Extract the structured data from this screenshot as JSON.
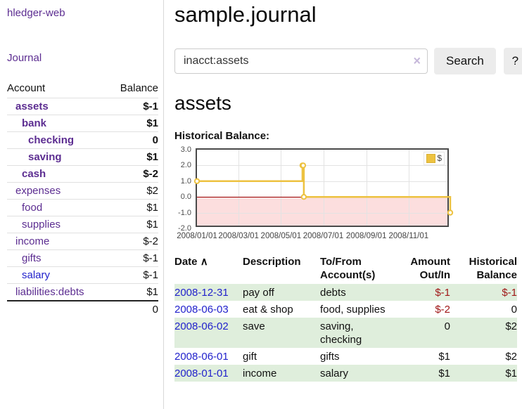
{
  "app": {
    "brand": "hledger-web"
  },
  "sidebar": {
    "journal_link": "Journal",
    "table": {
      "headers": [
        "Account",
        "Balance"
      ],
      "rows": [
        {
          "account": "assets",
          "balance": "$-1",
          "acct_class": "lvl1 bold",
          "bal_class": "neg bold"
        },
        {
          "account": "bank",
          "balance": "$1",
          "acct_class": "lvl2 bold",
          "bal_class": "bold"
        },
        {
          "account": "checking",
          "balance": "0",
          "acct_class": "lvl3 bold",
          "bal_class": "bold"
        },
        {
          "account": "saving",
          "balance": "$1",
          "acct_class": "lvl3 bold",
          "bal_class": "bold"
        },
        {
          "account": "cash",
          "balance": "$-2",
          "acct_class": "lvl2 bold",
          "bal_class": "neg bold"
        },
        {
          "account": "expenses",
          "balance": "$2",
          "acct_class": "lvl1",
          "bal_class": ""
        },
        {
          "account": "food",
          "balance": "$1",
          "acct_class": "lvl2",
          "bal_class": ""
        },
        {
          "account": "supplies",
          "balance": "$1",
          "acct_class": "lvl2",
          "bal_class": ""
        },
        {
          "account": "income",
          "balance": "$-2",
          "acct_class": "lvl1",
          "bal_class": "neg-soft"
        },
        {
          "account": "gifts",
          "balance": "$-1",
          "acct_class": "lvl2",
          "bal_class": "neg-soft"
        },
        {
          "account": "salary",
          "balance": "$-1",
          "acct_class": "lvl2 blue",
          "bal_class": "neg-soft"
        },
        {
          "account": "liabilities:debts",
          "balance": "$1",
          "acct_class": "lvl1",
          "bal_class": ""
        }
      ],
      "total": "0"
    }
  },
  "main": {
    "title": "sample.journal",
    "search": {
      "value": "inacct:assets",
      "clear_icon": "×",
      "search_button": "Search",
      "help_button": "?"
    },
    "account_heading": "assets",
    "section_label": "Historical Balance:"
  },
  "chart_data": {
    "type": "line",
    "step": true,
    "title": "Historical Balance:",
    "series": [
      {
        "name": "$",
        "color": "#edc240",
        "points": [
          [
            "2008-01-01",
            1
          ],
          [
            "2008-06-01",
            2
          ],
          [
            "2008-06-02",
            2
          ],
          [
            "2008-06-03",
            0
          ],
          [
            "2008-12-31",
            -1
          ]
        ]
      }
    ],
    "xlim": [
      "2008-01-01",
      "2008-12-31"
    ],
    "ylim": [
      -2,
      3
    ],
    "x_ticks": [
      {
        "date": "2008-01-01",
        "label": "2008/01/01"
      },
      {
        "date": "2008-03-01",
        "label": "2008/03/01"
      },
      {
        "date": "2008-05-01",
        "label": "2008/05/01"
      },
      {
        "date": "2008-07-01",
        "label": "2008/07/01"
      },
      {
        "date": "2008-09-01",
        "label": "2008/09/01"
      },
      {
        "date": "2008-11-01",
        "label": "2008/11/01"
      }
    ],
    "y_ticks": [
      {
        "value": 3,
        "label": "3.0"
      },
      {
        "value": 2,
        "label": "2.0"
      },
      {
        "value": 1,
        "label": "1.0"
      },
      {
        "value": 0,
        "label": "0.0"
      },
      {
        "value": -1,
        "label": "-1.0"
      },
      {
        "value": -2,
        "label": "-2.0"
      }
    ],
    "grid": true,
    "legend": {
      "label": "$",
      "position": "top-right"
    },
    "negative_region_color": "#fcdede",
    "zero_line_color": "#990000",
    "marker": {
      "fill": "#ffffff",
      "stroke": "#edc240"
    }
  },
  "register": {
    "headers": {
      "date": "Date",
      "sort_icon": "∧",
      "description": "Description",
      "accounts": "To/From Account(s)",
      "amount": "Amount Out/In",
      "balance": "Historical Balance"
    },
    "rows": [
      {
        "date": "2008-12-31",
        "description": "pay off",
        "accounts": "debts",
        "amount": "$-1",
        "balance": "$-1",
        "row_class": "alt",
        "amount_class": "neg",
        "balance_class": "neg"
      },
      {
        "date": "2008-06-03",
        "description": "eat & shop",
        "accounts": "food, supplies",
        "amount": "$-2",
        "balance": "0",
        "row_class": "",
        "amount_class": "neg",
        "balance_class": ""
      },
      {
        "date": "2008-06-02",
        "description": "save",
        "accounts": "saving, checking",
        "amount": "0",
        "balance": "$2",
        "row_class": "alt",
        "amount_class": "",
        "balance_class": ""
      },
      {
        "date": "2008-06-01",
        "description": "gift",
        "accounts": "gifts",
        "amount": "$1",
        "balance": "$2",
        "row_class": "",
        "amount_class": "",
        "balance_class": ""
      },
      {
        "date": "2008-01-01",
        "description": "income",
        "accounts": "salary",
        "amount": "$1",
        "balance": "$1",
        "row_class": "alt",
        "amount_class": "",
        "balance_class": ""
      }
    ]
  }
}
